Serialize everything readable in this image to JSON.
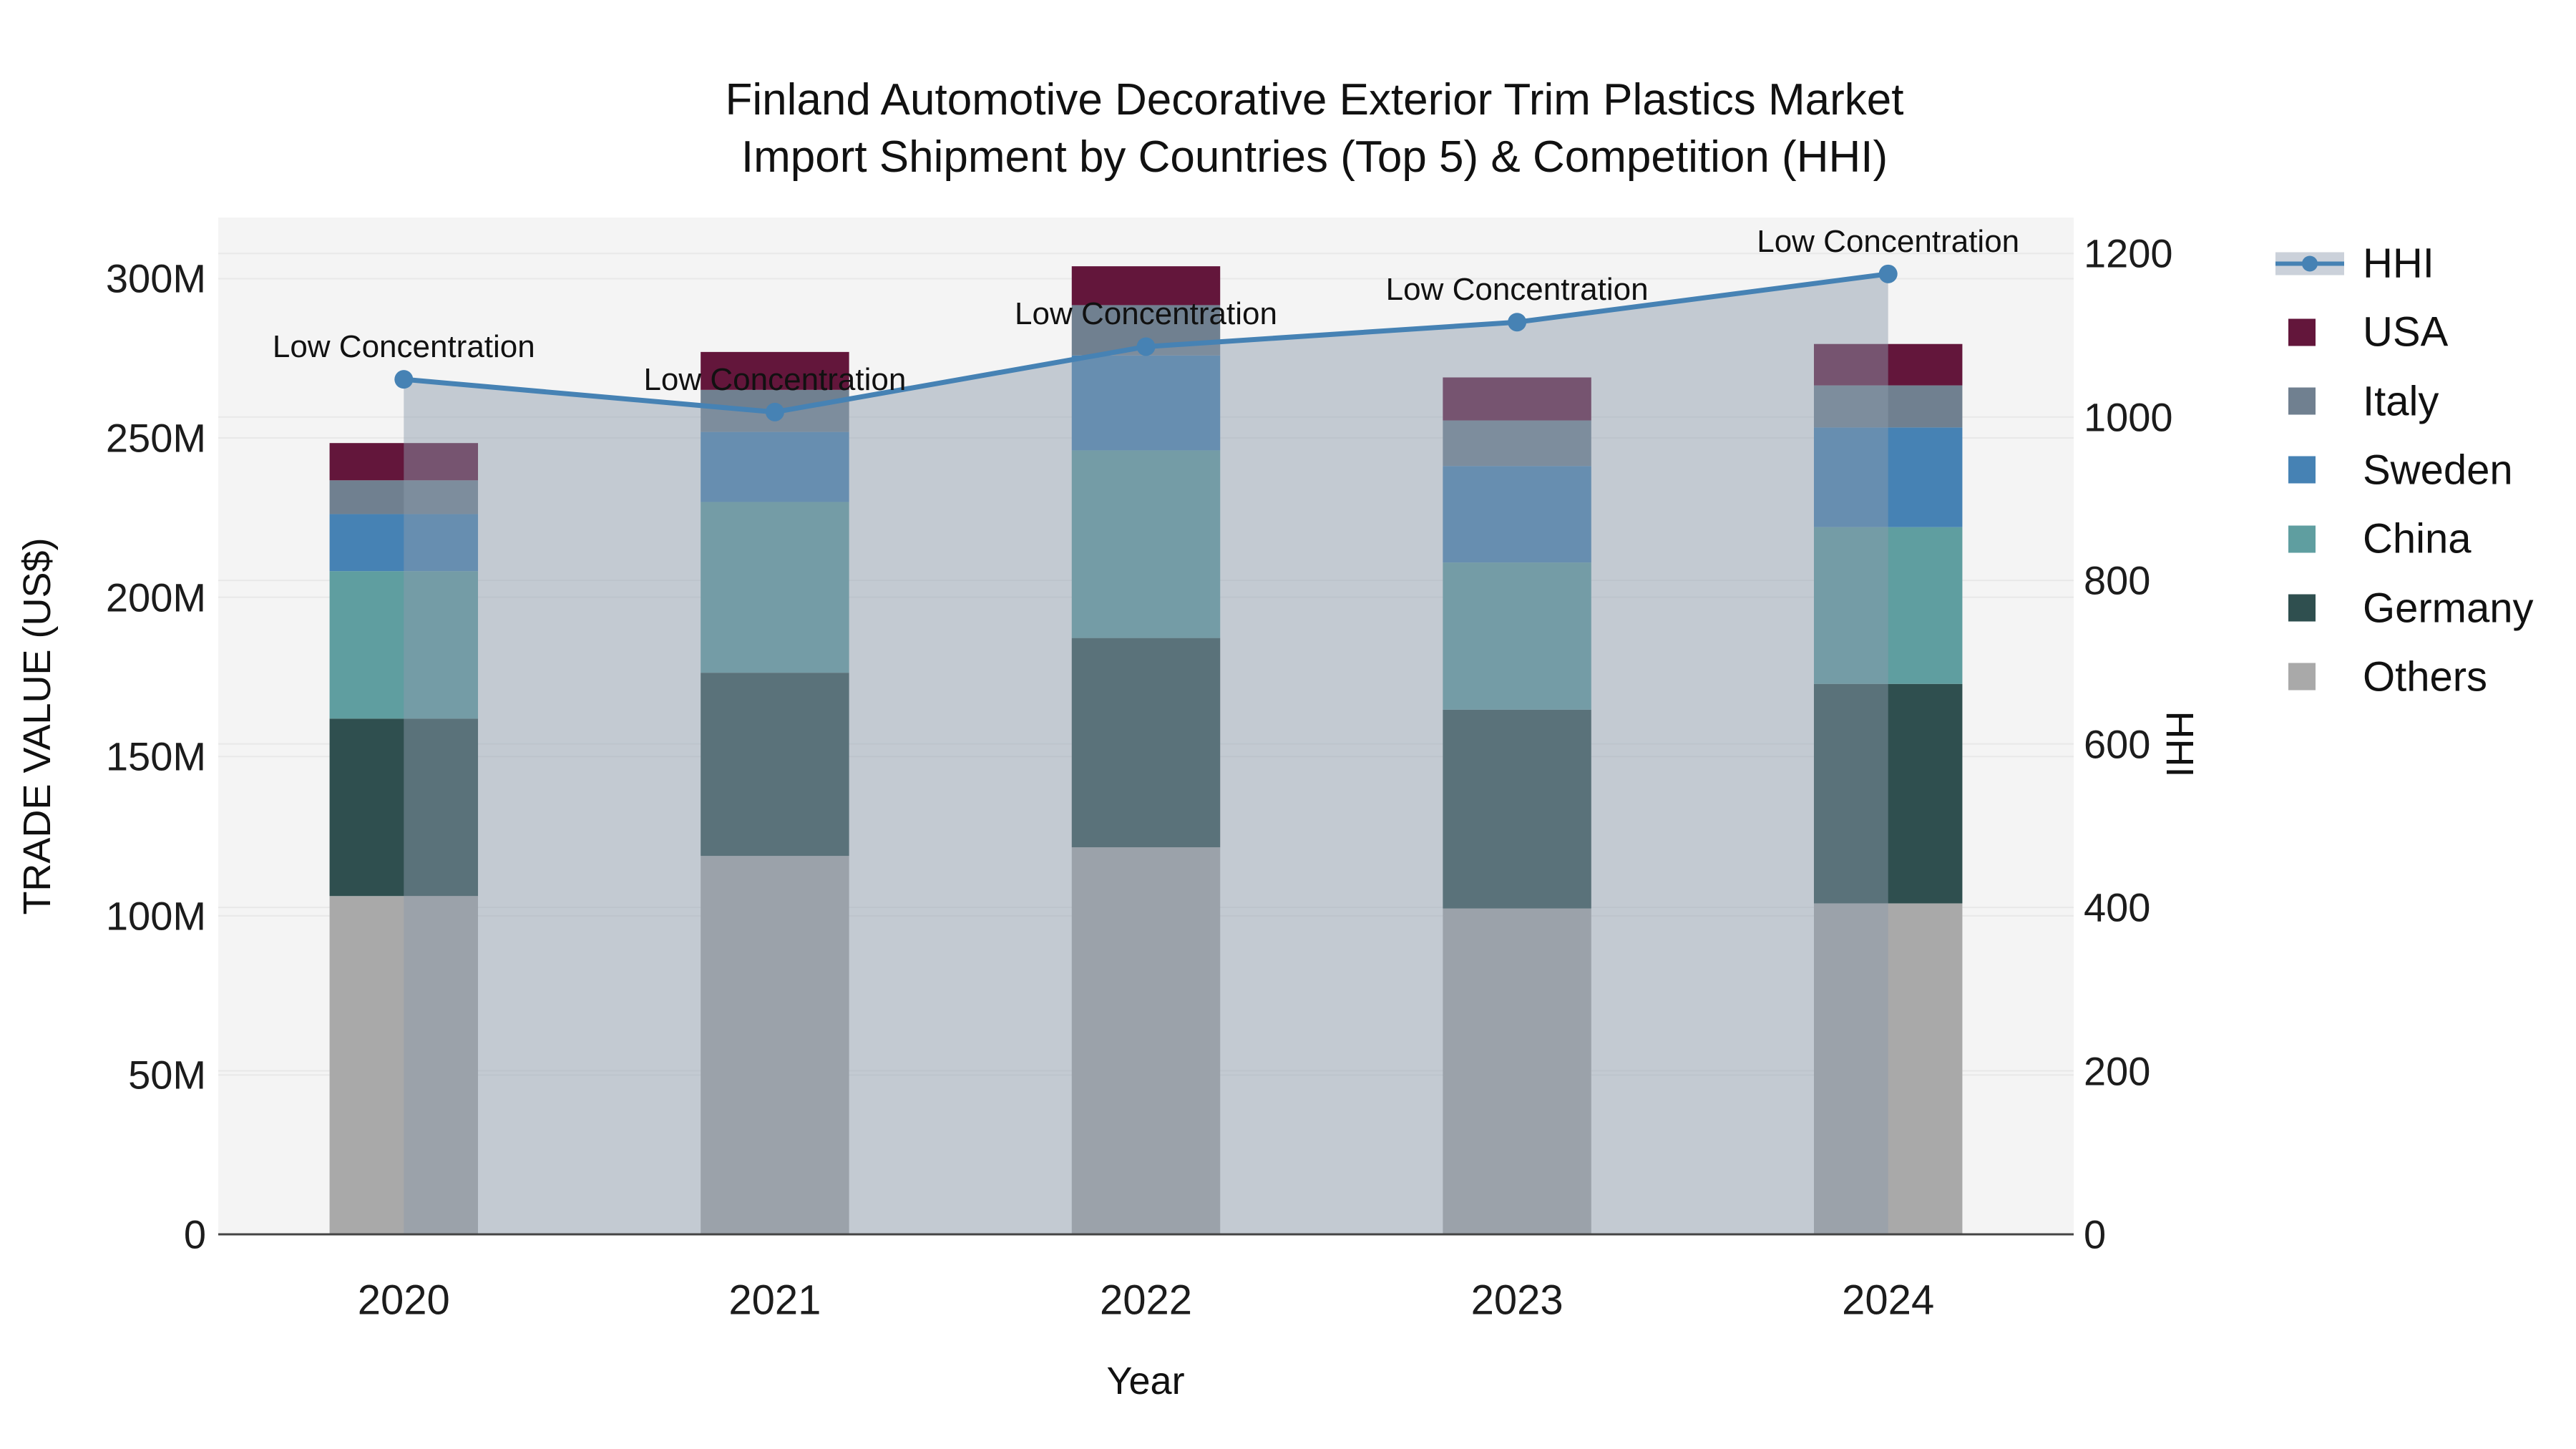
{
  "title": {
    "line1": "Finland Automotive Decorative Exterior Trim Plastics Market",
    "line2": "Import Shipment by Countries (Top 5) & Competition (HHI)"
  },
  "axes": {
    "x": {
      "title": "Year",
      "categories": [
        "2020",
        "2021",
        "2022",
        "2023",
        "2024"
      ]
    },
    "y_left": {
      "title": "TRADE VALUE (US$)",
      "ticks": [
        "0",
        "50M",
        "100M",
        "150M",
        "200M",
        "250M",
        "300M"
      ],
      "tick_values": [
        0,
        50,
        100,
        150,
        200,
        250,
        300
      ]
    },
    "y_right": {
      "title": "HHI",
      "ticks": [
        "0",
        "200",
        "400",
        "600",
        "800",
        "1000",
        "1200"
      ],
      "tick_values": [
        0,
        200,
        400,
        600,
        800,
        1000,
        1200
      ]
    }
  },
  "legend": {
    "items": [
      {
        "label": "HHI",
        "type": "line",
        "color": "#4682b4"
      },
      {
        "label": "USA",
        "type": "swatch",
        "color": "#63163b"
      },
      {
        "label": "Italy",
        "type": "swatch",
        "color": "#708090"
      },
      {
        "label": "Sweden",
        "type": "swatch",
        "color": "#4682b4"
      },
      {
        "label": "China",
        "type": "swatch",
        "color": "#5f9ea0"
      },
      {
        "label": "Germany",
        "type": "swatch",
        "color": "#2f4f4f"
      },
      {
        "label": "Others",
        "type": "swatch",
        "color": "#a9a9a9"
      }
    ]
  },
  "colors": {
    "plot_bg": "#f4f4f4",
    "grid": "#e8e8e8",
    "axis_line": "#444444",
    "hhi_line": "#4682b4",
    "hhi_area_fill": "rgba(141,155,173,0.47)"
  },
  "chart_data": {
    "type": "bar+line",
    "title": "Finland Automotive Decorative Exterior Trim Plastics Market Import Shipment by Countries (Top 5) & Competition (HHI)",
    "xlabel": "Year",
    "ylabel_left": "TRADE VALUE (US$)",
    "ylabel_right": "HHI",
    "categories": [
      "2020",
      "2021",
      "2022",
      "2023",
      "2024"
    ],
    "stack_order_bottom_to_top": [
      "Others",
      "Germany",
      "China",
      "Sweden",
      "Italy",
      "USA"
    ],
    "series": [
      {
        "name": "Others",
        "color": "#a9a9a9",
        "axis": "left",
        "values": [
          106.2,
          118.8,
          121.5,
          102.3,
          103.9
        ]
      },
      {
        "name": "Germany",
        "color": "#2f4f4f",
        "axis": "left",
        "values": [
          55.7,
          57.5,
          65.7,
          62.4,
          68.9
        ]
      },
      {
        "name": "China",
        "color": "#5f9ea0",
        "axis": "left",
        "values": [
          46.3,
          53.6,
          58.9,
          46.2,
          49.2
        ]
      },
      {
        "name": "Sweden",
        "color": "#4682b4",
        "axis": "left",
        "values": [
          17.9,
          22.0,
          29.8,
          30.3,
          31.3
        ]
      },
      {
        "name": "Italy",
        "color": "#708090",
        "axis": "left",
        "values": [
          10.6,
          13.2,
          15.8,
          14.3,
          13.2
        ]
      },
      {
        "name": "USA",
        "color": "#63163b",
        "axis": "left",
        "values": [
          11.7,
          11.9,
          12.2,
          13.5,
          13.0
        ]
      }
    ],
    "bar_totals": [
      248.4,
      277.0,
      303.9,
      269.0,
      279.5
    ],
    "line": {
      "name": "HHI",
      "axis": "right",
      "color": "#4682b4",
      "area_fill": "rgba(141,155,173,0.47)",
      "values": [
        1046,
        1006,
        1086,
        1116,
        1175
      ]
    },
    "annotations": [
      "Low Concentration",
      "Low Concentration",
      "Low Concentration",
      "Low Concentration",
      "Low Concentration"
    ],
    "ylim_left": [
      0,
      319.2
    ],
    "ylim_right": [
      0,
      1244
    ],
    "grid": true,
    "legend_position": "right"
  }
}
